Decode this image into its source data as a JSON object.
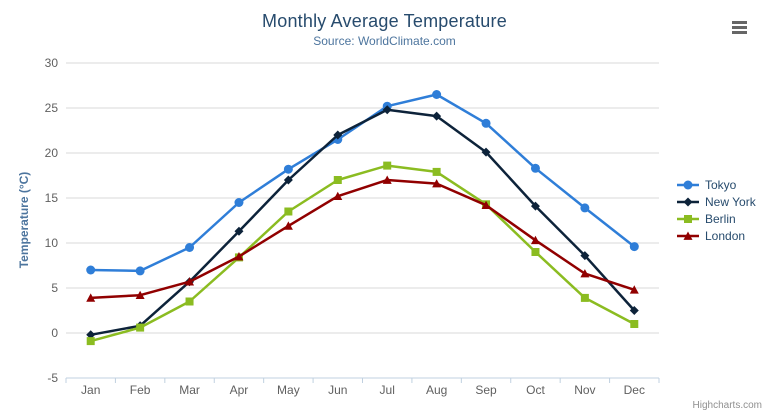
{
  "chart_data": {
    "type": "line",
    "title": "Monthly Average Temperature",
    "subtitle": "Source: WorldClimate.com",
    "categories": [
      "Jan",
      "Feb",
      "Mar",
      "Apr",
      "May",
      "Jun",
      "Jul",
      "Aug",
      "Sep",
      "Oct",
      "Nov",
      "Dec"
    ],
    "series": [
      {
        "name": "Tokyo",
        "color": "#2f7ed8",
        "marker": "circle",
        "values": [
          7.0,
          6.9,
          9.5,
          14.5,
          18.2,
          21.5,
          25.2,
          26.5,
          23.3,
          18.3,
          13.9,
          9.6
        ]
      },
      {
        "name": "New York",
        "color": "#0d233a",
        "marker": "diamond",
        "values": [
          -0.2,
          0.8,
          5.7,
          11.3,
          17.0,
          22.0,
          24.8,
          24.1,
          20.1,
          14.1,
          8.6,
          2.5
        ]
      },
      {
        "name": "Berlin",
        "color": "#8bbc21",
        "marker": "square",
        "values": [
          -0.9,
          0.6,
          3.5,
          8.4,
          13.5,
          17.0,
          18.6,
          17.9,
          14.3,
          9.0,
          3.9,
          1.0
        ]
      },
      {
        "name": "London",
        "color": "#910000",
        "marker": "triangle",
        "values": [
          3.9,
          4.2,
          5.7,
          8.5,
          11.9,
          15.2,
          17.0,
          16.6,
          14.2,
          10.3,
          6.6,
          4.8
        ]
      }
    ],
    "xlabel": "",
    "ylabel": "Temperature (°C)",
    "ylim": [
      -5,
      30
    ],
    "ytick_interval": 5,
    "grid": true,
    "legend_position": "right",
    "axis_colors": {
      "grid": "#d8d8d8",
      "axis_line": "#c0d0e0",
      "tick_label": "#606060"
    }
  },
  "credits": "Highcharts.com"
}
